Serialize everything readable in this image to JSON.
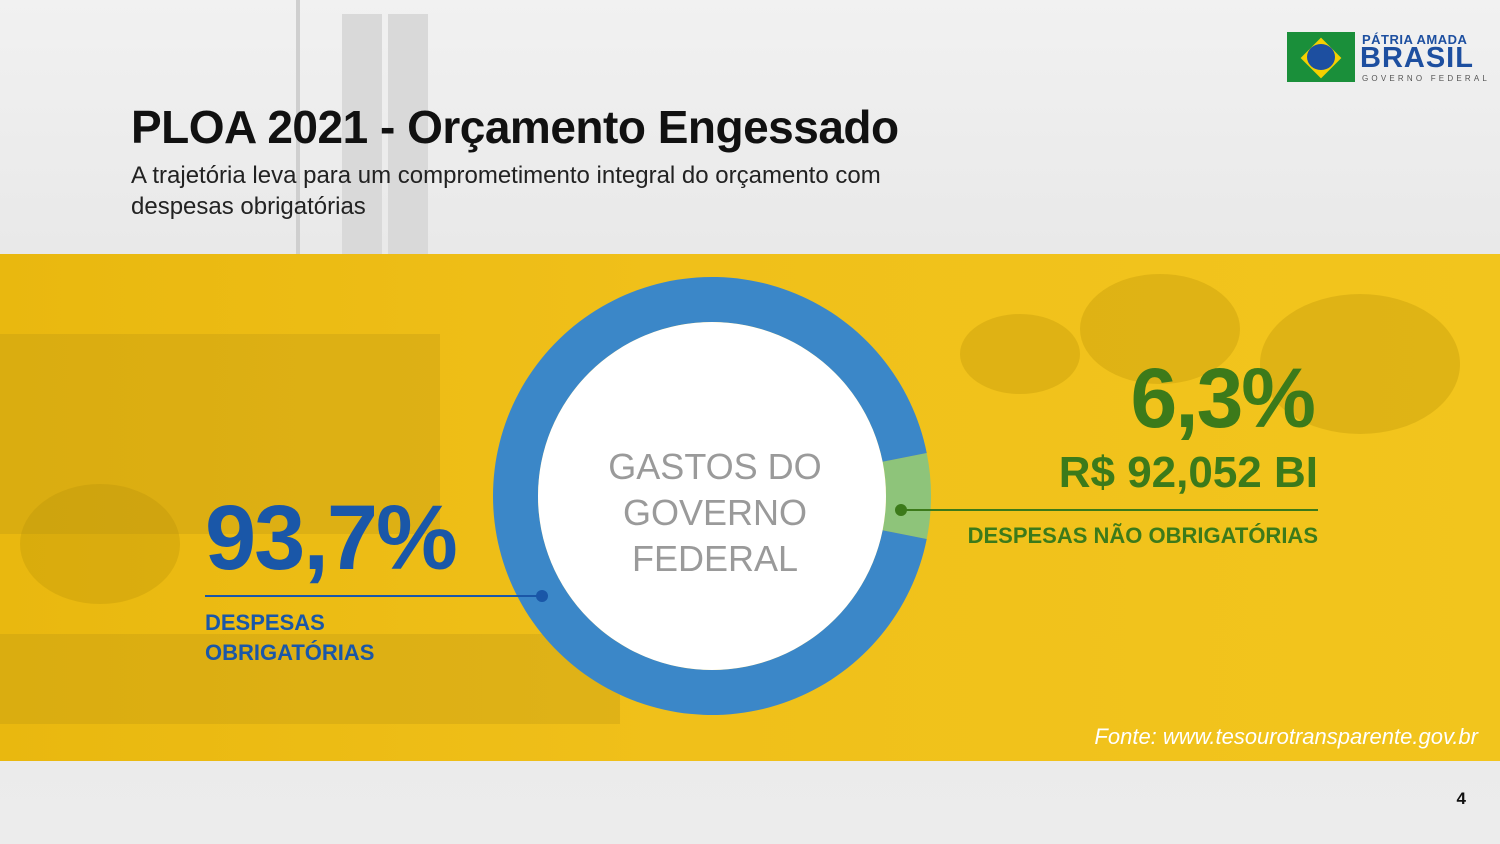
{
  "header": {
    "title": "PLOA 2021 - Orçamento Engessado",
    "subtitle": "A trajetória leva para um comprometimento integral do orçamento com despesas obrigatórias"
  },
  "logo": {
    "line1": "PÁTRIA AMADA",
    "line2": "BRASIL",
    "line3": "GOVERNO FEDERAL"
  },
  "chart_data": {
    "type": "pie",
    "center_label": "GASTOS DO GOVERNO FEDERAL",
    "series": [
      {
        "name": "DESPESAS OBRIGATÓRIAS",
        "value": 93.7,
        "label": "93,7%",
        "color": "#3b87c8"
      },
      {
        "name": "DESPESAS NÃO OBRIGATÓRIAS",
        "value": 6.3,
        "label": "6,3%",
        "amount": "R$ 92,052 BI",
        "color": "#8ec47a"
      }
    ]
  },
  "colors": {
    "band": "#f0c01a",
    "obrigatorias_text": "#1a57a8",
    "nao_obrigatorias_text": "#3c7a1a"
  },
  "footer": {
    "source": "Fonte: www.tesourotransparente.gov.br",
    "page": "4"
  }
}
